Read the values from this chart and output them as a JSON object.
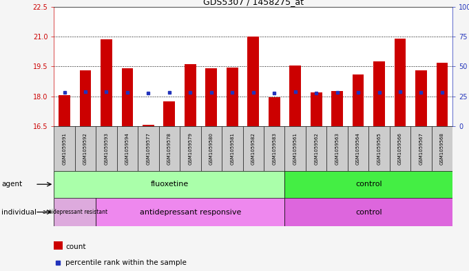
{
  "title": "GDS5307 / 1458275_at",
  "samples": [
    "GSM1059591",
    "GSM1059592",
    "GSM1059593",
    "GSM1059594",
    "GSM1059577",
    "GSM1059578",
    "GSM1059579",
    "GSM1059580",
    "GSM1059581",
    "GSM1059582",
    "GSM1059583",
    "GSM1059561",
    "GSM1059562",
    "GSM1059563",
    "GSM1059564",
    "GSM1059565",
    "GSM1059566",
    "GSM1059567",
    "GSM1059568"
  ],
  "bar_values": [
    18.05,
    19.3,
    20.85,
    19.4,
    16.55,
    17.75,
    19.6,
    19.4,
    19.45,
    21.0,
    17.95,
    19.55,
    18.2,
    18.25,
    19.1,
    19.75,
    20.9,
    19.3,
    19.7
  ],
  "blue_values": [
    18.18,
    18.22,
    18.22,
    18.18,
    18.15,
    18.18,
    18.2,
    18.2,
    18.2,
    18.2,
    18.15,
    18.22,
    18.17,
    18.2,
    18.2,
    18.2,
    18.22,
    18.18,
    18.2
  ],
  "ylim_left": [
    16.5,
    22.5
  ],
  "yticks_left": [
    16.5,
    18.0,
    19.5,
    21.0,
    22.5
  ],
  "yticks_right": [
    0,
    25,
    50,
    75,
    100
  ],
  "bar_color": "#cc0000",
  "blue_color": "#2233bb",
  "cell_bg": "#cccccc",
  "plot_bg": "#ffffff",
  "fig_bg": "#f5f5f5",
  "agent_fluoxetine_color": "#aaffaa",
  "agent_control_color": "#44ee44",
  "indiv_resistant_color": "#ddaadd",
  "indiv_responsive_color": "#ee88ee",
  "indiv_control_color": "#dd66dd",
  "n_fluoxetine": 11,
  "n_samples": 19,
  "hline_values": [
    18.0,
    19.5,
    21.0
  ],
  "left_axis_color": "#cc0000",
  "right_axis_color": "#2233bb"
}
